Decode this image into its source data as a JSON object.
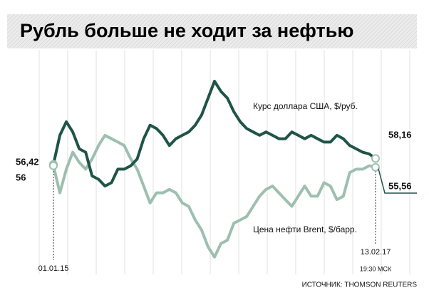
{
  "chart_data": {
    "type": "line",
    "title": "Рубль больше не ходит за нефтью",
    "categories": [
      "01.01.15",
      null,
      null,
      null,
      null,
      null,
      null,
      null,
      null,
      null,
      null,
      null,
      null,
      null,
      null,
      null,
      null,
      null,
      null,
      null,
      null,
      null,
      null,
      null,
      null,
      null,
      null,
      null,
      null,
      null,
      null,
      null,
      null,
      null,
      null,
      null,
      null,
      null,
      null,
      null,
      null,
      null,
      null,
      null,
      null,
      null,
      null,
      null,
      null,
      null,
      "13.02.17"
    ],
    "time_note": "19:30 МСК",
    "series": [
      {
        "name": "Курс доллара США, $/руб.",
        "color": "#1f5446",
        "values": [
          56.42,
          65,
          69,
          66,
          61,
          60,
          53,
          52,
          50,
          51,
          55,
          55,
          56,
          58,
          64,
          68,
          67,
          65,
          62,
          64,
          65,
          66,
          68,
          71,
          76,
          81,
          78,
          76,
          72,
          69,
          67,
          66,
          65,
          66,
          65,
          64,
          64,
          66,
          65,
          64,
          65,
          64,
          63,
          63,
          65,
          64,
          62,
          61,
          60,
          59.5,
          58.16
        ],
        "value_labels": [
          "56,42",
          null,
          null,
          null,
          null,
          null,
          null,
          null,
          null,
          null,
          null,
          null,
          null,
          null,
          null,
          null,
          null,
          null,
          null,
          null,
          null,
          null,
          null,
          null,
          null,
          null,
          null,
          null,
          null,
          null,
          null,
          null,
          null,
          null,
          null,
          null,
          null,
          null,
          null,
          null,
          null,
          null,
          null,
          null,
          null,
          null,
          null,
          null,
          null,
          null,
          "58,16"
        ]
      },
      {
        "name": "Цена нефти Brent, $/барр.",
        "color": "#9dbfb0",
        "values": [
          56,
          48,
          55,
          60,
          57,
          55,
          58,
          62,
          65,
          64,
          63,
          62,
          58,
          55,
          50,
          45,
          48,
          48,
          49,
          48,
          45,
          44,
          40,
          37,
          32,
          29,
          33,
          34,
          39,
          40,
          41,
          44,
          47,
          49,
          50,
          48,
          46,
          44,
          47,
          50,
          47,
          47,
          51,
          50,
          46,
          47,
          54,
          55,
          55,
          56,
          55.56
        ],
        "value_labels": [
          "56",
          null,
          null,
          null,
          null,
          null,
          null,
          null,
          null,
          null,
          null,
          null,
          null,
          null,
          null,
          null,
          null,
          null,
          null,
          null,
          null,
          null,
          null,
          null,
          null,
          null,
          null,
          null,
          null,
          null,
          null,
          null,
          null,
          null,
          null,
          null,
          null,
          null,
          null,
          null,
          null,
          null,
          null,
          null,
          null,
          null,
          null,
          null,
          null,
          null,
          "55,56"
        ]
      }
    ],
    "ylim": [
      26,
      85
    ],
    "source": "ИСТОЧНИК: THOMSON REUTERS"
  }
}
